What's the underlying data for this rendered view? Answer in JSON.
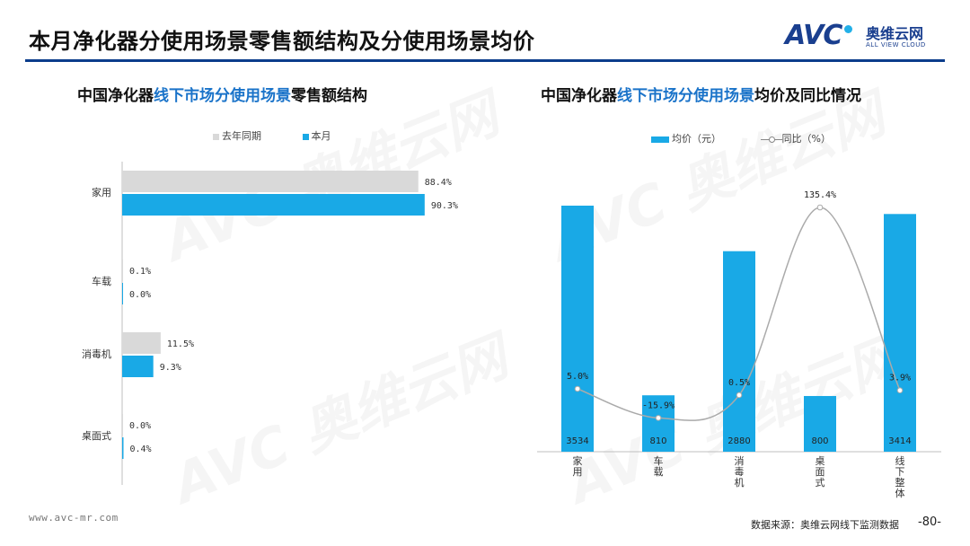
{
  "header": {
    "title": "本月净化器分使用场景零售额结构及分使用场景均价",
    "logo_text": "AVC",
    "logo_cn": "奥维云网",
    "logo_en": "ALL VIEW CLOUD"
  },
  "left_chart": {
    "title_prefix": "中国净化器",
    "title_highlight": "线下市场分使用场景",
    "title_suffix": "零售额结构"
  },
  "right_chart": {
    "title_prefix": "中国净化器",
    "title_highlight": "线下市场分使用场景",
    "title_suffix": "均价及同比情况"
  },
  "chart_data": [
    {
      "type": "bar",
      "orientation": "horizontal",
      "categories": [
        "家用",
        "车载",
        "消毒机",
        "桌面式"
      ],
      "series": [
        {
          "name": "去年同期",
          "values": [
            88.4,
            0.1,
            11.5,
            0.0
          ],
          "color": "#d9d9d9"
        },
        {
          "name": "本月",
          "values": [
            90.3,
            0.0,
            9.3,
            0.4
          ],
          "color": "#19a9e6"
        }
      ],
      "value_labels": [
        [
          "88.4%",
          "0.1%",
          "11.5%",
          "0.0%"
        ],
        [
          "90.3%",
          "0.0%",
          "9.3%",
          "0.4%"
        ]
      ],
      "legend_position": "top",
      "grid": false
    },
    {
      "type": "bar",
      "categories": [
        "家用",
        "车载",
        "消毒机",
        "桌面式",
        "线下整体"
      ],
      "series": [
        {
          "name": "均价（元）",
          "type": "bar",
          "values": [
            3534,
            810,
            2880,
            800,
            3414
          ],
          "color": "#19a9e6"
        },
        {
          "name": "同比（%）",
          "type": "line",
          "values": [
            5.0,
            -15.9,
            0.5,
            135.4,
            3.9
          ],
          "color": "#aaaaaa"
        }
      ],
      "bar_labels": [
        "3534",
        "810",
        "2880",
        "800",
        "3414"
      ],
      "line_labels": [
        "5.0%",
        "-15.9%",
        "0.5%",
        "135.4%",
        "3.9%"
      ],
      "legend_position": "top",
      "grid": false
    }
  ],
  "legend_left": {
    "prev": "去年同期",
    "curr": "本月"
  },
  "legend_right": {
    "bar": "均价（元）",
    "line": "同比（%）"
  },
  "footer": {
    "url": "www.avc-mr.com",
    "source": "数据来源：奥维云网线下监测数据",
    "page": "-80-"
  }
}
